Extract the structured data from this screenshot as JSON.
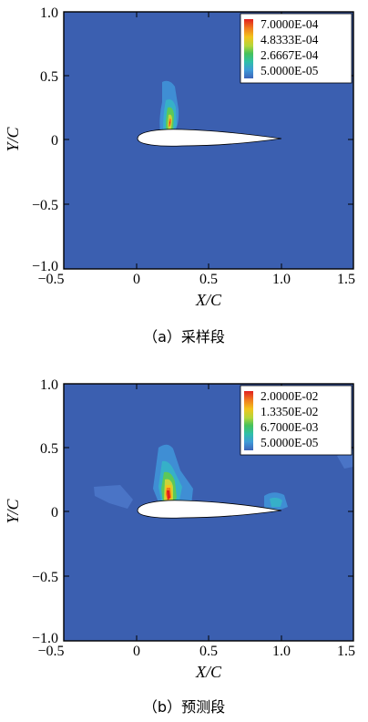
{
  "figures": [
    {
      "caption": "（a）采样段",
      "xlabel": "X/C",
      "ylabel": "Y/C",
      "xticks": [
        "−0.5",
        "0",
        "0.5",
        "1.0",
        "1.5"
      ],
      "yticks": [
        "1.0",
        "0.5",
        "0",
        "−0.5",
        "−1.0"
      ],
      "legend": [
        "7.0000E-04",
        "4.8333E-04",
        "2.6667E-04",
        "5.0000E-05"
      ]
    },
    {
      "caption": "（b）预测段",
      "xlabel": "X/C",
      "ylabel": "Y/C",
      "xticks": [
        "−0.5",
        "0",
        "0.5",
        "1.0",
        "1.5"
      ],
      "yticks": [
        "1.0",
        "0.5",
        "0",
        "−0.5",
        "−1.0"
      ],
      "legend": [
        "2.0000E-02",
        "1.3350E-02",
        "6.7000E-03",
        "5.0000E-05"
      ]
    }
  ],
  "chart_data": [
    {
      "type": "heatmap",
      "xlabel": "X/C",
      "ylabel": "Y/C",
      "xlim": [
        -0.5,
        1.5
      ],
      "ylim": [
        -1.0,
        1.0
      ],
      "colorbar": [
        0.0007,
        0.00048333,
        0.00026667,
        5e-05
      ],
      "background_color": "#3b5fb0"
    },
    {
      "type": "heatmap",
      "xlabel": "X/C",
      "ylabel": "Y/C",
      "xlim": [
        -0.5,
        1.5
      ],
      "ylim": [
        -1.0,
        1.0
      ],
      "colorbar": [
        0.02,
        0.01335,
        0.0067,
        5e-05
      ],
      "background_color": "#3b5fb0"
    }
  ],
  "colors": {
    "field": "#3b5fb0",
    "scale": [
      "#e01f1f",
      "#f07a1e",
      "#f2c41c",
      "#b3d63a",
      "#46c15a",
      "#2fc0a8",
      "#3f9ad8",
      "#3d64b8"
    ]
  }
}
